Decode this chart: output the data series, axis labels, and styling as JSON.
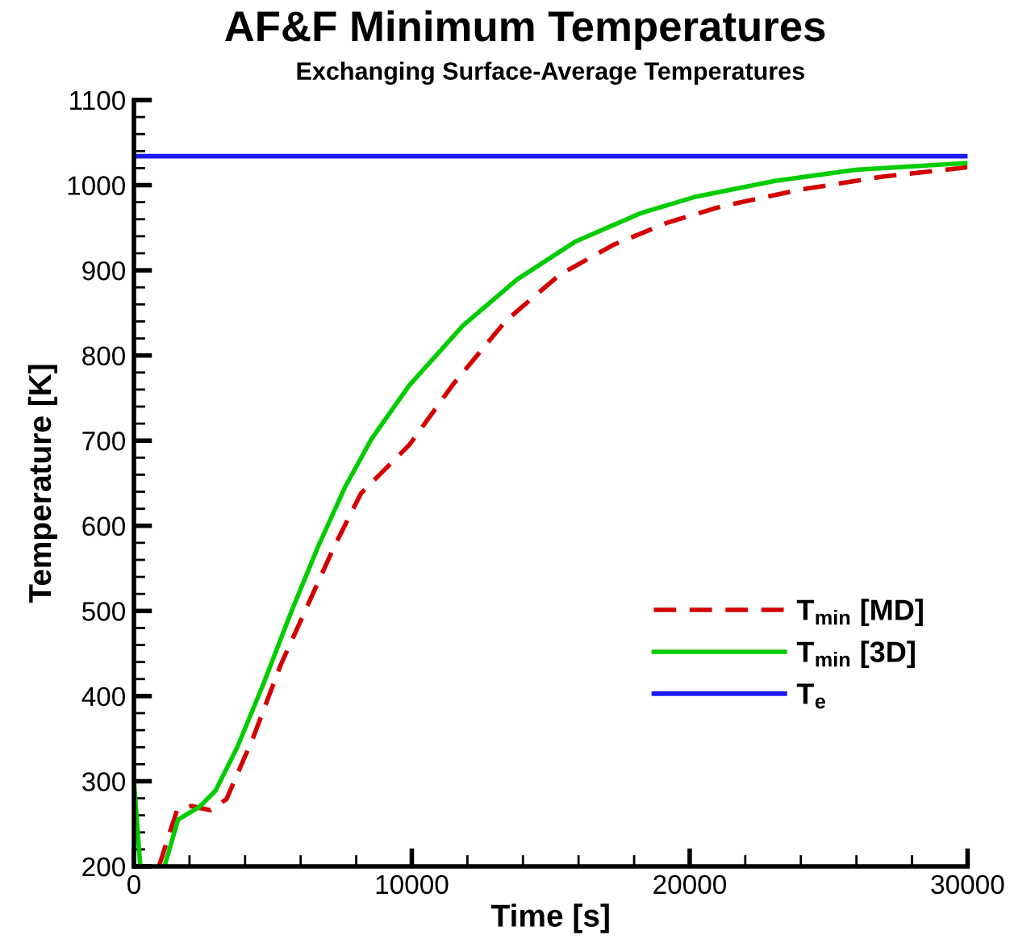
{
  "chart_data": {
    "type": "line",
    "title": "AF&F Minimum Temperatures",
    "subtitle": "Exchanging Surface-Average Temperatures",
    "xlabel": "Time [s]",
    "ylabel": "Temperature [K]",
    "xlim": [
      0,
      30000
    ],
    "ylim": [
      200,
      1100
    ],
    "xticks": [
      0,
      10000,
      20000,
      30000
    ],
    "yticks": [
      200,
      300,
      400,
      500,
      600,
      700,
      800,
      900,
      1000,
      1100
    ],
    "grid": false,
    "legend": "bottom right",
    "marker": "none",
    "series": [
      {
        "name": "T$_{min}$ [MD]",
        "color": "#d40000",
        "line_style": "dashed",
        "x": [
          900,
          1550,
          2070,
          2750,
          3330,
          4300,
          5260,
          6230,
          7200,
          8170,
          9910,
          11460,
          13390,
          15330,
          17260,
          19200,
          21130,
          24030,
          26940,
          30000
        ],
        "values": [
          200,
          266,
          271,
          266,
          279,
          352,
          435,
          505,
          575,
          638,
          695,
          765,
          841,
          895,
          930,
          956,
          975,
          995,
          1010,
          1021
        ]
      },
      {
        "name": "T$_{min}$ [3D]",
        "color": "#00cc00",
        "line_style": "solid",
        "x": [
          0,
          230,
          700,
          1100,
          1590,
          2360,
          2940,
          3720,
          4680,
          5650,
          6620,
          7590,
          8550,
          9910,
          11840,
          13780,
          15900,
          18230,
          20160,
          23070,
          25970,
          30000
        ],
        "values": [
          300,
          200,
          null,
          200,
          255,
          270,
          289,
          340,
          416,
          498,
          575,
          645,
          702,
          765,
          835,
          889,
          934,
          967,
          986,
          1005,
          1018,
          1026
        ]
      },
      {
        "name": "T$_{e}$",
        "color": "#1a1aff",
        "line_style": "solid",
        "x": [
          0,
          30000
        ],
        "values": [
          1034,
          1034
        ]
      }
    ]
  }
}
